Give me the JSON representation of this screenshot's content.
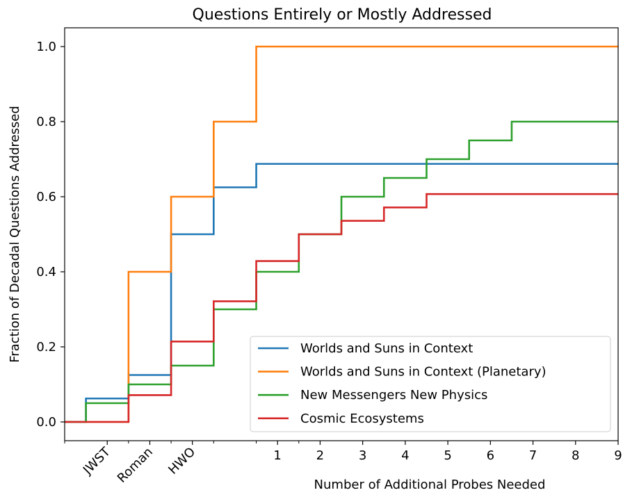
{
  "chart_data": {
    "type": "line",
    "drawstyle": "steps-post",
    "title": "Questions Entirely or Mostly Addressed",
    "xlabel": "Number of Additional Probes Needed",
    "ylabel": "Fraction of Decadal Questions Addressed",
    "xlim": [
      -4,
      9
    ],
    "ylim": [
      -0.05,
      1.05
    ],
    "xticks": [
      {
        "value": -3,
        "label": "JWST"
      },
      {
        "value": -2,
        "label": "Roman"
      },
      {
        "value": -1,
        "label": "HWO"
      },
      {
        "value": 1,
        "label": "1"
      },
      {
        "value": 2,
        "label": "2"
      },
      {
        "value": 3,
        "label": "3"
      },
      {
        "value": 4,
        "label": "4"
      },
      {
        "value": 5,
        "label": "5"
      },
      {
        "value": 6,
        "label": "6"
      },
      {
        "value": 7,
        "label": "7"
      },
      {
        "value": 8,
        "label": "8"
      },
      {
        "value": 9,
        "label": "9"
      }
    ],
    "xminor_ticks": [
      -4,
      -2.5,
      -1.5,
      -0.5,
      0.5,
      1.5
    ],
    "yticks": [
      0.0,
      0.2,
      0.4,
      0.6,
      0.8,
      1.0
    ],
    "ytick_labels": [
      "0.0",
      "0.2",
      "0.4",
      "0.6",
      "0.8",
      "1.0"
    ],
    "grid": false,
    "legend_position": "lower-right",
    "series": [
      {
        "name": "Worlds and Suns in Context",
        "color": "#1f77b4",
        "x": [
          -4,
          -3.5,
          -2.5,
          -1.5,
          -0.5,
          0.5,
          9
        ],
        "y": [
          0.0,
          0.0625,
          0.125,
          0.5,
          0.625,
          0.6875,
          0.6875
        ]
      },
      {
        "name": "Worlds and Suns in Context (Planetary)",
        "color": "#ff7f0e",
        "x": [
          -4,
          -2.5,
          -1.5,
          -0.5,
          0.5,
          9
        ],
        "y": [
          0.0,
          0.4,
          0.6,
          0.8,
          1.0,
          1.0
        ]
      },
      {
        "name": "New Messengers New Physics",
        "color": "#2ca02c",
        "x": [
          -4,
          -3.5,
          -2.5,
          -1.5,
          -0.5,
          0.5,
          1.5,
          2.5,
          3.5,
          4.5,
          5.5,
          6.5,
          9
        ],
        "y": [
          0.0,
          0.05,
          0.1,
          0.15,
          0.3,
          0.4,
          0.5,
          0.6,
          0.65,
          0.7,
          0.75,
          0.8,
          0.8
        ]
      },
      {
        "name": "Cosmic Ecosystems",
        "color": "#d62728",
        "x": [
          -4,
          -2.5,
          -1.5,
          -0.5,
          0.5,
          1.5,
          2.5,
          3.5,
          4.5,
          9
        ],
        "y": [
          0.0,
          0.0714,
          0.2143,
          0.3214,
          0.4286,
          0.5,
          0.5357,
          0.5714,
          0.6071,
          0.6071
        ]
      }
    ]
  }
}
